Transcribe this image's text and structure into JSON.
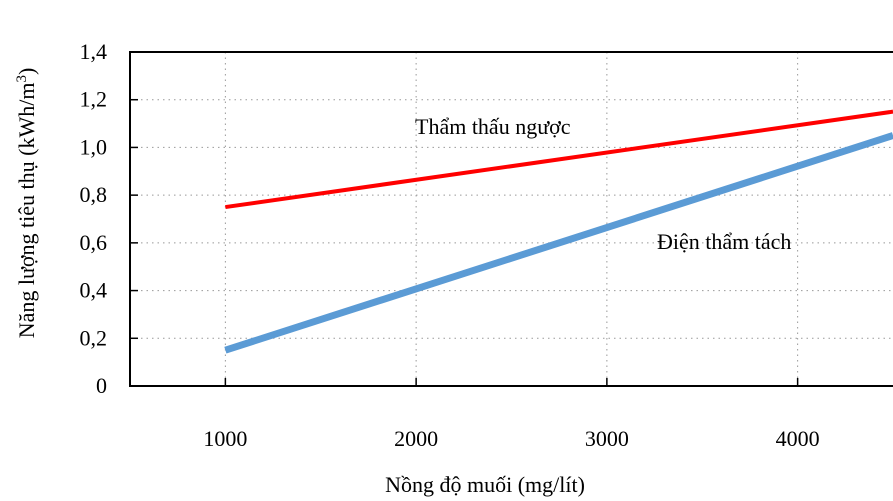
{
  "chart_data": {
    "type": "line",
    "xlabel": "Nồng độ muối (mg/lít)",
    "ylabel": "Năng lượng tiêu thụ (kWh/m",
    "ylabel_sup": "3",
    "ylabel_close": ")",
    "xlim": [
      500,
      4500
    ],
    "ylim": [
      0,
      1.4
    ],
    "x_ticks": [
      1000,
      2000,
      3000,
      4000
    ],
    "x_tick_labels": [
      "1000",
      "2000",
      "3000",
      "4000"
    ],
    "y_ticks": [
      0,
      0.2,
      0.4,
      0.6,
      0.8,
      1.0,
      1.2,
      1.4
    ],
    "y_tick_labels": [
      "0",
      "0,2",
      "0,4",
      "0,6",
      "0,8",
      "1,0",
      "1,2",
      "1,4"
    ],
    "grid": true,
    "series": [
      {
        "name": "Thẩm thấu ngược",
        "color": "#ff0000",
        "x": [
          1000,
          4500
        ],
        "y": [
          0.75,
          1.15
        ]
      },
      {
        "name": "Điện thẩm tách",
        "color": "#5b9bd5",
        "x": [
          1000,
          4500
        ],
        "y": [
          0.15,
          1.05
        ]
      }
    ]
  }
}
